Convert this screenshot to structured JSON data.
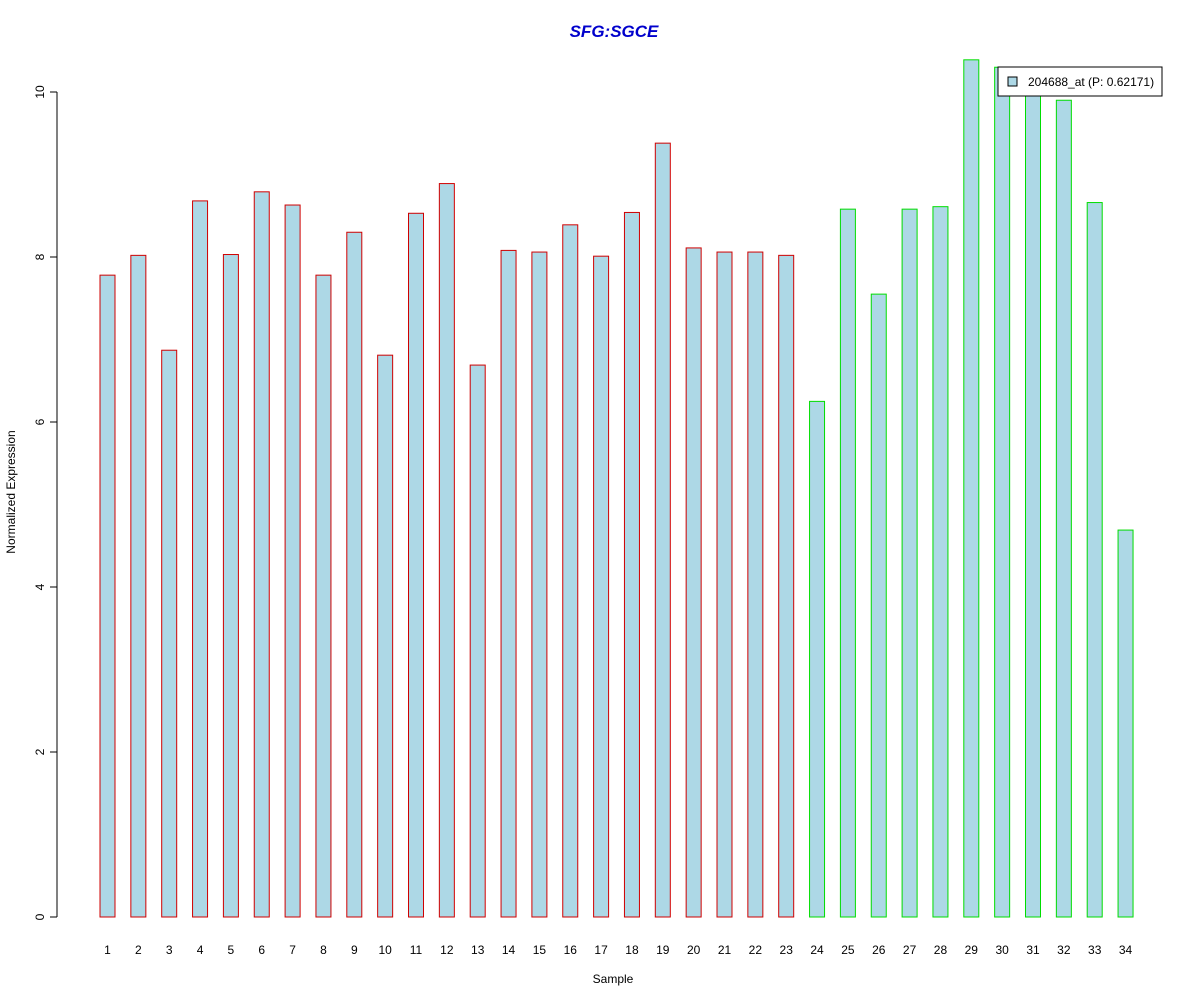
{
  "chart_data": {
    "type": "bar",
    "title": "SFG:SGCE",
    "xlabel": "Sample",
    "ylabel": "Normalized Expression",
    "ylim": [
      0,
      10.4
    ],
    "yticks": [
      "0",
      "2",
      "4",
      "6",
      "8",
      "10"
    ],
    "categories": [
      "1",
      "2",
      "3",
      "4",
      "5",
      "6",
      "7",
      "8",
      "9",
      "10",
      "11",
      "12",
      "13",
      "14",
      "15",
      "16",
      "17",
      "18",
      "19",
      "20",
      "21",
      "22",
      "23",
      "24",
      "25",
      "26",
      "27",
      "28",
      "29",
      "30",
      "31",
      "32",
      "33",
      "34"
    ],
    "series": [
      {
        "name": "204688_at (P: 0.62171)",
        "values": [
          7.78,
          8.02,
          6.87,
          8.68,
          8.03,
          8.79,
          8.63,
          7.78,
          8.3,
          6.81,
          8.53,
          8.89,
          6.69,
          8.08,
          8.06,
          8.39,
          8.01,
          8.54,
          9.38,
          8.11,
          8.06,
          8.06,
          8.02,
          6.25,
          8.58,
          7.55,
          8.58,
          8.61,
          10.39,
          10.3,
          10.1,
          9.9,
          8.66,
          4.69
        ]
      }
    ],
    "group_colors": [
      "#d00000",
      "#d00000",
      "#d00000",
      "#d00000",
      "#d00000",
      "#d00000",
      "#d00000",
      "#d00000",
      "#d00000",
      "#d00000",
      "#d00000",
      "#d00000",
      "#d00000",
      "#d00000",
      "#d00000",
      "#d00000",
      "#d00000",
      "#d00000",
      "#d00000",
      "#d00000",
      "#d00000",
      "#d00000",
      "#d00000",
      "#00dd00",
      "#00dd00",
      "#00dd00",
      "#00dd00",
      "#00dd00",
      "#00dd00",
      "#00dd00",
      "#00dd00",
      "#00dd00",
      "#00dd00",
      "#00dd00"
    ],
    "bar_fill": "#add8e6",
    "title_color": "#0000cc",
    "legend": {
      "label": "204688_at (P: 0.62171)",
      "position": "top-right"
    },
    "grid": false
  }
}
